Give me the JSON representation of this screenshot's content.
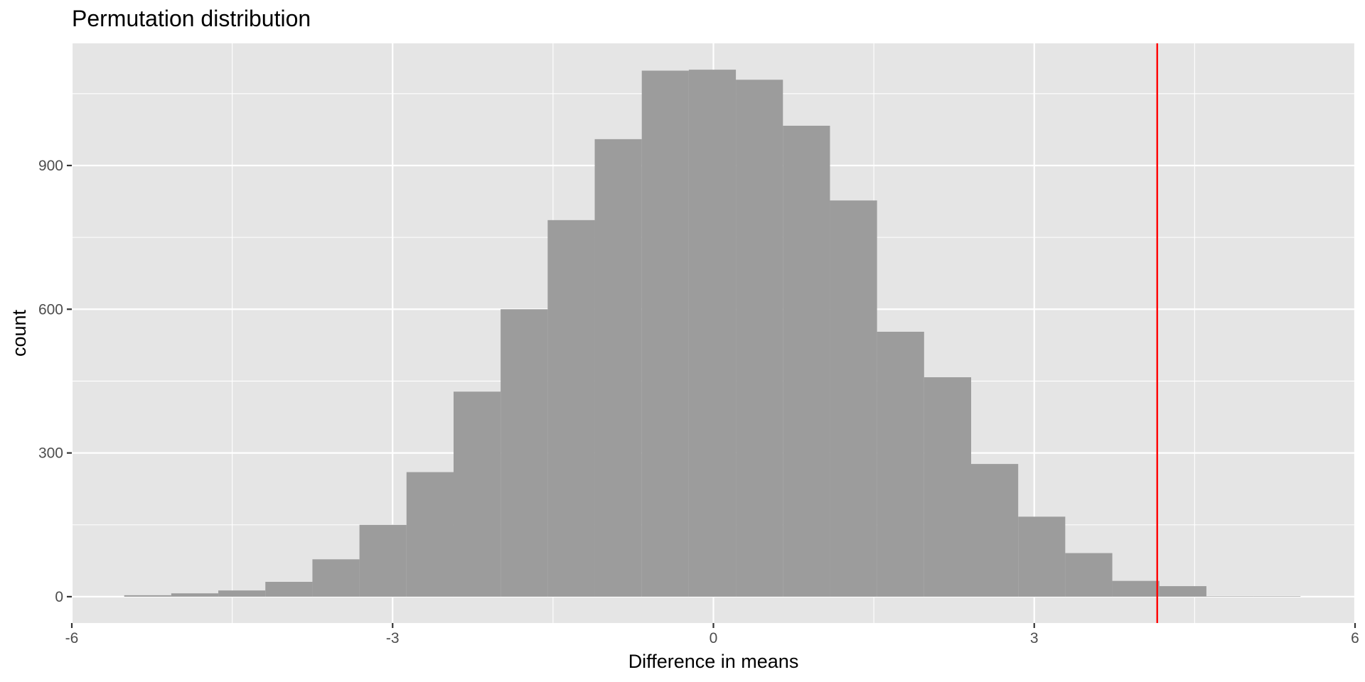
{
  "chart_data": {
    "type": "bar",
    "title": "Permutation distribution",
    "xlabel": "Difference in means",
    "ylabel": "count",
    "x_ticks": [
      -6,
      -3,
      0,
      3,
      6
    ],
    "y_ticks": [
      0,
      300,
      600,
      900
    ],
    "xlim": [
      -6.0,
      6.0
    ],
    "ylim": [
      -55,
      1155
    ],
    "bin_width": 0.44,
    "bins": [
      {
        "x0": -5.51,
        "x1": -5.07,
        "count": 3
      },
      {
        "x0": -5.07,
        "x1": -4.63,
        "count": 7
      },
      {
        "x0": -4.63,
        "x1": -4.19,
        "count": 13
      },
      {
        "x0": -4.19,
        "x1": -3.75,
        "count": 31
      },
      {
        "x0": -3.75,
        "x1": -3.31,
        "count": 78
      },
      {
        "x0": -3.31,
        "x1": -2.87,
        "count": 150
      },
      {
        "x0": -2.87,
        "x1": -2.43,
        "count": 260
      },
      {
        "x0": -2.43,
        "x1": -1.99,
        "count": 428
      },
      {
        "x0": -1.99,
        "x1": -1.55,
        "count": 600
      },
      {
        "x0": -1.55,
        "x1": -1.11,
        "count": 786
      },
      {
        "x0": -1.11,
        "x1": -0.67,
        "count": 955
      },
      {
        "x0": -0.67,
        "x1": -0.23,
        "count": 1098
      },
      {
        "x0": -0.23,
        "x1": 0.21,
        "count": 1100
      },
      {
        "x0": 0.21,
        "x1": 0.65,
        "count": 1079
      },
      {
        "x0": 0.65,
        "x1": 1.09,
        "count": 983
      },
      {
        "x0": 1.09,
        "x1": 1.53,
        "count": 827
      },
      {
        "x0": 1.53,
        "x1": 1.97,
        "count": 553
      },
      {
        "x0": 1.97,
        "x1": 2.41,
        "count": 458
      },
      {
        "x0": 2.41,
        "x1": 2.85,
        "count": 277
      },
      {
        "x0": 2.85,
        "x1": 3.29,
        "count": 167
      },
      {
        "x0": 3.29,
        "x1": 3.73,
        "count": 91
      },
      {
        "x0": 3.73,
        "x1": 4.17,
        "count": 33
      },
      {
        "x0": 4.17,
        "x1": 4.61,
        "count": 22
      },
      {
        "x0": 4.61,
        "x1": 5.05,
        "count": 1
      },
      {
        "x0": 5.05,
        "x1": 5.49,
        "count": 1
      }
    ],
    "reference_line": {
      "x": 4.15,
      "color": "#ff0000"
    },
    "colors": {
      "panel": "#e5e5e5",
      "grid": "#ffffff",
      "bar": "#999999",
      "tick": "#4d4d4d"
    },
    "grid": true
  }
}
